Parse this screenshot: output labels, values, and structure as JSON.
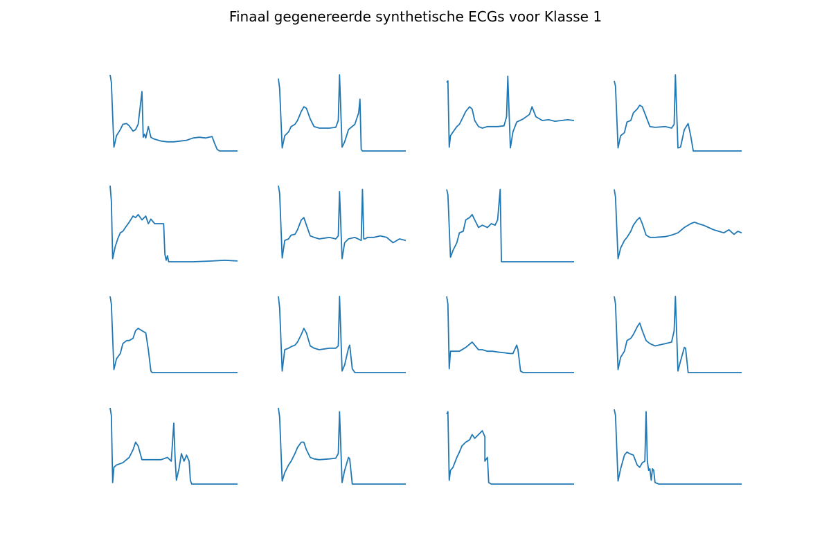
{
  "figure": {
    "title": "Finaal gegenereerde synthetische ECGs voor Klasse 1"
  },
  "style": {
    "line_color": "#1f77b4"
  },
  "chart_data": [
    {
      "type": "line",
      "x_range": [
        0,
        1
      ],
      "ylim": [
        0,
        1
      ],
      "grid": false,
      "axes": "off",
      "x": [
        0,
        0.01,
        0.03,
        0.05,
        0.08,
        0.1,
        0.13,
        0.15,
        0.18,
        0.2,
        0.22,
        0.25,
        0.26,
        0.27,
        0.28,
        0.3,
        0.32,
        0.34,
        0.36,
        0.38,
        0.4,
        0.45,
        0.5,
        0.55,
        0.6,
        0.65,
        0.7,
        0.75,
        0.8,
        0.82,
        0.84,
        0.86,
        0.9,
        0.95,
        1
      ],
      "y": [
        1,
        0.9,
        0.05,
        0.2,
        0.28,
        0.35,
        0.36,
        0.33,
        0.26,
        0.28,
        0.35,
        0.78,
        0.18,
        0.22,
        0.17,
        0.32,
        0.18,
        0.16,
        0.15,
        0.14,
        0.13,
        0.12,
        0.12,
        0.13,
        0.14,
        0.17,
        0.18,
        0.17,
        0.19,
        0.1,
        0.02,
        0,
        0,
        0,
        0
      ]
    },
    {
      "type": "line",
      "x_range": [
        0,
        1
      ],
      "ylim": [
        0,
        1
      ],
      "grid": false,
      "axes": "off",
      "x": [
        0,
        0.01,
        0.03,
        0.05,
        0.08,
        0.1,
        0.13,
        0.15,
        0.18,
        0.2,
        0.22,
        0.25,
        0.28,
        0.32,
        0.4,
        0.45,
        0.47,
        0.48,
        0.5,
        0.52,
        0.55,
        0.6,
        0.63,
        0.64,
        0.65,
        0.66,
        0.7,
        0.8,
        1
      ],
      "y": [
        0.95,
        0.82,
        0.04,
        0.2,
        0.25,
        0.32,
        0.35,
        0.4,
        0.52,
        0.58,
        0.56,
        0.42,
        0.32,
        0.3,
        0.3,
        0.31,
        0.4,
        1,
        0.05,
        0.12,
        0.28,
        0.35,
        0.5,
        0.68,
        0.02,
        0,
        0,
        0,
        0
      ]
    },
    {
      "type": "line",
      "x_range": [
        0,
        1
      ],
      "ylim": [
        0,
        1
      ],
      "grid": false,
      "axes": "off",
      "x": [
        0,
        0.01,
        0.02,
        0.03,
        0.05,
        0.08,
        0.1,
        0.13,
        0.15,
        0.18,
        0.2,
        0.22,
        0.25,
        0.28,
        0.32,
        0.4,
        0.45,
        0.47,
        0.48,
        0.5,
        0.52,
        0.55,
        0.6,
        0.65,
        0.67,
        0.7,
        0.75,
        0.8,
        0.85,
        0.9,
        0.95,
        1
      ],
      "y": [
        0.9,
        0.92,
        0.05,
        0.2,
        0.25,
        0.32,
        0.35,
        0.45,
        0.52,
        0.58,
        0.55,
        0.4,
        0.32,
        0.3,
        0.32,
        0.32,
        0.33,
        0.45,
        0.98,
        0.04,
        0.25,
        0.38,
        0.42,
        0.48,
        0.58,
        0.45,
        0.4,
        0.41,
        0.39,
        0.4,
        0.41,
        0.4
      ]
    },
    {
      "type": "line",
      "x_range": [
        0,
        1
      ],
      "ylim": [
        0,
        1
      ],
      "grid": false,
      "axes": "off",
      "x": [
        0,
        0.01,
        0.03,
        0.05,
        0.08,
        0.1,
        0.13,
        0.15,
        0.18,
        0.2,
        0.22,
        0.25,
        0.28,
        0.32,
        0.4,
        0.45,
        0.47,
        0.48,
        0.5,
        0.52,
        0.55,
        0.58,
        0.6,
        0.62,
        0.7,
        0.8,
        1
      ],
      "y": [
        0.92,
        0.85,
        0.04,
        0.2,
        0.24,
        0.38,
        0.4,
        0.5,
        0.55,
        0.6,
        0.58,
        0.45,
        0.32,
        0.31,
        0.32,
        0.3,
        0.35,
        1,
        0.04,
        0.05,
        0.28,
        0.36,
        0.2,
        0,
        0,
        0,
        0
      ]
    },
    {
      "type": "line",
      "x_range": [
        0,
        1
      ],
      "ylim": [
        0,
        1
      ],
      "grid": false,
      "axes": "off",
      "x": [
        0,
        0.01,
        0.02,
        0.04,
        0.06,
        0.08,
        0.1,
        0.12,
        0.15,
        0.18,
        0.2,
        0.22,
        0.25,
        0.28,
        0.3,
        0.32,
        0.35,
        0.4,
        0.42,
        0.43,
        0.44,
        0.45,
        0.46,
        0.48,
        0.55,
        0.65,
        0.8,
        0.9,
        1
      ],
      "y": [
        1,
        0.8,
        0.04,
        0.2,
        0.3,
        0.38,
        0.4,
        0.45,
        0.52,
        0.6,
        0.58,
        0.62,
        0.55,
        0.6,
        0.5,
        0.56,
        0.5,
        0.5,
        0.5,
        0.1,
        0.02,
        0.08,
        0,
        0,
        0,
        0,
        0.01,
        0.02,
        0.01
      ]
    },
    {
      "type": "line",
      "x_range": [
        0,
        1
      ],
      "ylim": [
        0,
        1
      ],
      "grid": false,
      "axes": "off",
      "x": [
        0,
        0.01,
        0.03,
        0.05,
        0.08,
        0.1,
        0.13,
        0.15,
        0.18,
        0.2,
        0.22,
        0.25,
        0.28,
        0.32,
        0.4,
        0.45,
        0.47,
        0.48,
        0.5,
        0.52,
        0.55,
        0.6,
        0.65,
        0.66,
        0.67,
        0.68,
        0.7,
        0.75,
        0.8,
        0.85,
        0.9,
        0.95,
        1
      ],
      "y": [
        1,
        0.9,
        0.05,
        0.28,
        0.3,
        0.35,
        0.36,
        0.42,
        0.55,
        0.58,
        0.48,
        0.34,
        0.32,
        0.3,
        0.32,
        0.3,
        0.34,
        0.92,
        0.04,
        0.25,
        0.3,
        0.32,
        0.28,
        0.95,
        0.3,
        0.3,
        0.32,
        0.32,
        0.34,
        0.32,
        0.25,
        0.3,
        0.28
      ]
    },
    {
      "type": "line",
      "x_range": [
        0,
        1
      ],
      "ylim": [
        0,
        1
      ],
      "grid": false,
      "axes": "off",
      "x": [
        0,
        0.01,
        0.03,
        0.05,
        0.08,
        0.1,
        0.13,
        0.15,
        0.18,
        0.2,
        0.22,
        0.25,
        0.28,
        0.32,
        0.35,
        0.38,
        0.4,
        0.42,
        0.43,
        0.44,
        0.5,
        0.6,
        0.8,
        1
      ],
      "y": [
        0.95,
        0.88,
        0.06,
        0.15,
        0.25,
        0.38,
        0.4,
        0.55,
        0.58,
        0.62,
        0.55,
        0.45,
        0.48,
        0.45,
        0.5,
        0.48,
        0.55,
        0.95,
        0,
        0,
        0,
        0,
        0,
        0
      ]
    },
    {
      "type": "line",
      "x_range": [
        0,
        1
      ],
      "ylim": [
        0,
        1
      ],
      "grid": false,
      "axes": "off",
      "x": [
        0,
        0.01,
        0.03,
        0.05,
        0.08,
        0.1,
        0.13,
        0.15,
        0.18,
        0.2,
        0.22,
        0.25,
        0.28,
        0.32,
        0.4,
        0.45,
        0.5,
        0.55,
        0.6,
        0.63,
        0.66,
        0.7,
        0.74,
        0.78,
        0.82,
        0.86,
        0.9,
        0.94,
        0.97,
        1
      ],
      "y": [
        0.95,
        0.85,
        0.04,
        0.18,
        0.28,
        0.32,
        0.4,
        0.48,
        0.55,
        0.58,
        0.5,
        0.35,
        0.32,
        0.32,
        0.33,
        0.35,
        0.38,
        0.45,
        0.5,
        0.52,
        0.5,
        0.48,
        0.45,
        0.42,
        0.4,
        0.38,
        0.42,
        0.36,
        0.4,
        0.38
      ]
    },
    {
      "type": "line",
      "x_range": [
        0,
        1
      ],
      "ylim": [
        0,
        1
      ],
      "grid": false,
      "axes": "off",
      "x": [
        0,
        0.01,
        0.03,
        0.05,
        0.08,
        0.1,
        0.13,
        0.15,
        0.18,
        0.2,
        0.22,
        0.25,
        0.28,
        0.3,
        0.32,
        0.33,
        0.35,
        0.4,
        0.5,
        0.7,
        1
      ],
      "y": [
        1,
        0.9,
        0.04,
        0.18,
        0.25,
        0.38,
        0.42,
        0.42,
        0.45,
        0.55,
        0.58,
        0.55,
        0.52,
        0.3,
        0.02,
        0,
        0,
        0,
        0,
        0,
        0
      ]
    },
    {
      "type": "line",
      "x_range": [
        0,
        1
      ],
      "ylim": [
        0,
        1
      ],
      "grid": false,
      "axes": "off",
      "x": [
        0,
        0.01,
        0.03,
        0.05,
        0.08,
        0.1,
        0.13,
        0.15,
        0.18,
        0.2,
        0.22,
        0.25,
        0.28,
        0.32,
        0.4,
        0.45,
        0.47,
        0.48,
        0.5,
        0.52,
        0.55,
        0.56,
        0.58,
        0.6,
        0.7,
        0.8,
        1
      ],
      "y": [
        1,
        0.85,
        0.02,
        0.3,
        0.32,
        0.34,
        0.36,
        0.4,
        0.5,
        0.58,
        0.52,
        0.35,
        0.32,
        0.3,
        0.32,
        0.32,
        0.35,
        1,
        0.02,
        0.1,
        0.32,
        0.36,
        0.05,
        0,
        0,
        0,
        0
      ]
    },
    {
      "type": "line",
      "x_range": [
        0,
        1
      ],
      "ylim": [
        0,
        1
      ],
      "grid": false,
      "axes": "off",
      "x": [
        0,
        0.01,
        0.02,
        0.03,
        0.05,
        0.1,
        0.15,
        0.2,
        0.25,
        0.28,
        0.32,
        0.36,
        0.4,
        0.45,
        0.5,
        0.52,
        0.55,
        0.56,
        0.58,
        0.6,
        0.7,
        0.8,
        1
      ],
      "y": [
        1,
        0.9,
        0.05,
        0.28,
        0.28,
        0.28,
        0.33,
        0.4,
        0.3,
        0.3,
        0.28,
        0.28,
        0.27,
        0.26,
        0.25,
        0.25,
        0.36,
        0.3,
        0.02,
        0,
        0,
        0,
        0
      ]
    },
    {
      "type": "line",
      "x_range": [
        0,
        1
      ],
      "ylim": [
        0,
        1
      ],
      "grid": false,
      "axes": "off",
      "x": [
        0,
        0.01,
        0.03,
        0.05,
        0.08,
        0.1,
        0.13,
        0.15,
        0.18,
        0.2,
        0.22,
        0.25,
        0.28,
        0.32,
        0.4,
        0.45,
        0.47,
        0.48,
        0.5,
        0.52,
        0.55,
        0.56,
        0.58,
        0.6,
        0.7,
        0.8,
        1
      ],
      "y": [
        1,
        0.9,
        0.04,
        0.2,
        0.28,
        0.42,
        0.45,
        0.5,
        0.6,
        0.65,
        0.55,
        0.42,
        0.38,
        0.35,
        0.38,
        0.4,
        0.55,
        1,
        0.02,
        0.15,
        0.33,
        0.32,
        0,
        0,
        0,
        0,
        0
      ]
    },
    {
      "type": "line",
      "x_range": [
        0,
        1
      ],
      "ylim": [
        0,
        1
      ],
      "grid": false,
      "axes": "off",
      "x": [
        0,
        0.01,
        0.02,
        0.03,
        0.05,
        0.1,
        0.15,
        0.18,
        0.2,
        0.22,
        0.25,
        0.28,
        0.32,
        0.4,
        0.45,
        0.48,
        0.5,
        0.51,
        0.52,
        0.54,
        0.56,
        0.58,
        0.6,
        0.62,
        0.63,
        0.64,
        0.65,
        0.7,
        0.8,
        1
      ],
      "y": [
        1,
        0.9,
        0.02,
        0.22,
        0.25,
        0.28,
        0.35,
        0.45,
        0.55,
        0.5,
        0.32,
        0.32,
        0.32,
        0.32,
        0.35,
        0.3,
        0.8,
        0.35,
        0.05,
        0.2,
        0.4,
        0.3,
        0.38,
        0.3,
        0.05,
        0,
        0,
        0,
        0,
        0
      ]
    },
    {
      "type": "line",
      "x_range": [
        0,
        1
      ],
      "ylim": [
        0,
        1
      ],
      "grid": false,
      "axes": "off",
      "x": [
        0,
        0.01,
        0.03,
        0.05,
        0.08,
        0.1,
        0.13,
        0.15,
        0.18,
        0.2,
        0.22,
        0.25,
        0.28,
        0.32,
        0.4,
        0.45,
        0.47,
        0.48,
        0.5,
        0.52,
        0.55,
        0.56,
        0.58,
        0.6,
        0.7,
        0.8,
        1
      ],
      "y": [
        1,
        0.88,
        0.04,
        0.15,
        0.25,
        0.3,
        0.4,
        0.48,
        0.55,
        0.55,
        0.45,
        0.35,
        0.33,
        0.32,
        0.33,
        0.34,
        0.4,
        0.95,
        0.02,
        0.18,
        0.35,
        0.33,
        0,
        0,
        0,
        0,
        0
      ]
    },
    {
      "type": "line",
      "x_range": [
        0,
        1
      ],
      "ylim": [
        0,
        1
      ],
      "grid": false,
      "axes": "off",
      "x": [
        0,
        0.01,
        0.02,
        0.03,
        0.05,
        0.08,
        0.1,
        0.12,
        0.15,
        0.18,
        0.2,
        0.22,
        0.25,
        0.28,
        0.3,
        0.3,
        0.32,
        0.33,
        0.35,
        0.4,
        0.5,
        0.7,
        1
      ],
      "y": [
        0.92,
        0.95,
        0.05,
        0.18,
        0.22,
        0.35,
        0.42,
        0.5,
        0.55,
        0.58,
        0.65,
        0.6,
        0.65,
        0.7,
        0.62,
        0.3,
        0.35,
        0.02,
        0,
        0,
        0,
        0,
        0
      ]
    },
    {
      "type": "line",
      "x_range": [
        0,
        1
      ],
      "ylim": [
        0,
        1
      ],
      "grid": false,
      "axes": "off",
      "x": [
        0,
        0.01,
        0.03,
        0.05,
        0.08,
        0.1,
        0.12,
        0.15,
        0.18,
        0.2,
        0.22,
        0.24,
        0.25,
        0.26,
        0.27,
        0.28,
        0.29,
        0.3,
        0.31,
        0.32,
        0.35,
        0.4,
        0.6,
        0.8,
        1
      ],
      "y": [
        0.98,
        0.9,
        0.04,
        0.2,
        0.38,
        0.42,
        0.4,
        0.38,
        0.25,
        0.22,
        0.28,
        0.3,
        0.95,
        0.3,
        0.18,
        0.2,
        0.05,
        0.2,
        0.18,
        0.02,
        0,
        0,
        0,
        0,
        0
      ]
    }
  ]
}
